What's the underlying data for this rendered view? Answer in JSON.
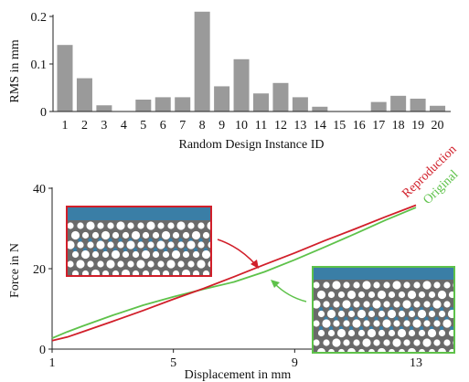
{
  "chart_data": [
    {
      "type": "bar",
      "xlabel": "Random Design Instance ID",
      "ylabel": "RMS in mm",
      "ylim": [
        0,
        0.2
      ],
      "y_ticks": [
        "0",
        "0.1",
        "0.2"
      ],
      "categories": [
        "1",
        "2",
        "3",
        "4",
        "5",
        "6",
        "7",
        "8",
        "9",
        "10",
        "11",
        "12",
        "13",
        "14",
        "15",
        "16",
        "17",
        "18",
        "19",
        "20"
      ],
      "values": [
        0.14,
        0.07,
        0.013,
        0.0,
        0.025,
        0.03,
        0.03,
        0.21,
        0.053,
        0.11,
        0.038,
        0.06,
        0.03,
        0.01,
        0.0,
        0.0,
        0.02,
        0.033,
        0.027,
        0.012
      ],
      "bar_color": "#9a9a9a"
    },
    {
      "type": "line",
      "xlabel": "Displacement in mm",
      "ylabel": "Force in N",
      "xlim": [
        1,
        13
      ],
      "ylim": [
        0,
        40
      ],
      "x_ticks": [
        "1",
        "5",
        "9",
        "13"
      ],
      "y_ticks": [
        "0",
        "20",
        "40"
      ],
      "series": [
        {
          "name": "Reproduction",
          "color": "#d11f2a",
          "x": [
            1.0,
            1.5,
            2.0,
            3.0,
            4.0,
            5.0,
            6.0,
            7.0,
            8.0,
            9.0,
            10.0,
            11.0,
            12.0,
            13.0
          ],
          "y": [
            2.1,
            3.0,
            4.3,
            6.9,
            9.6,
            12.4,
            15.1,
            18.0,
            21.0,
            23.9,
            27.0,
            29.9,
            32.9,
            35.8
          ]
        },
        {
          "name": "Original",
          "color": "#5ec24a",
          "x": [
            1.0,
            1.5,
            2.0,
            3.0,
            4.0,
            5.0,
            6.0,
            7.0,
            8.0,
            9.0,
            10.0,
            11.0,
            12.0,
            13.0
          ],
          "y": [
            2.7,
            4.3,
            5.7,
            8.4,
            10.9,
            13.0,
            14.9,
            16.7,
            19.2,
            22.2,
            25.4,
            28.7,
            32.1,
            35.2
          ]
        }
      ]
    }
  ]
}
